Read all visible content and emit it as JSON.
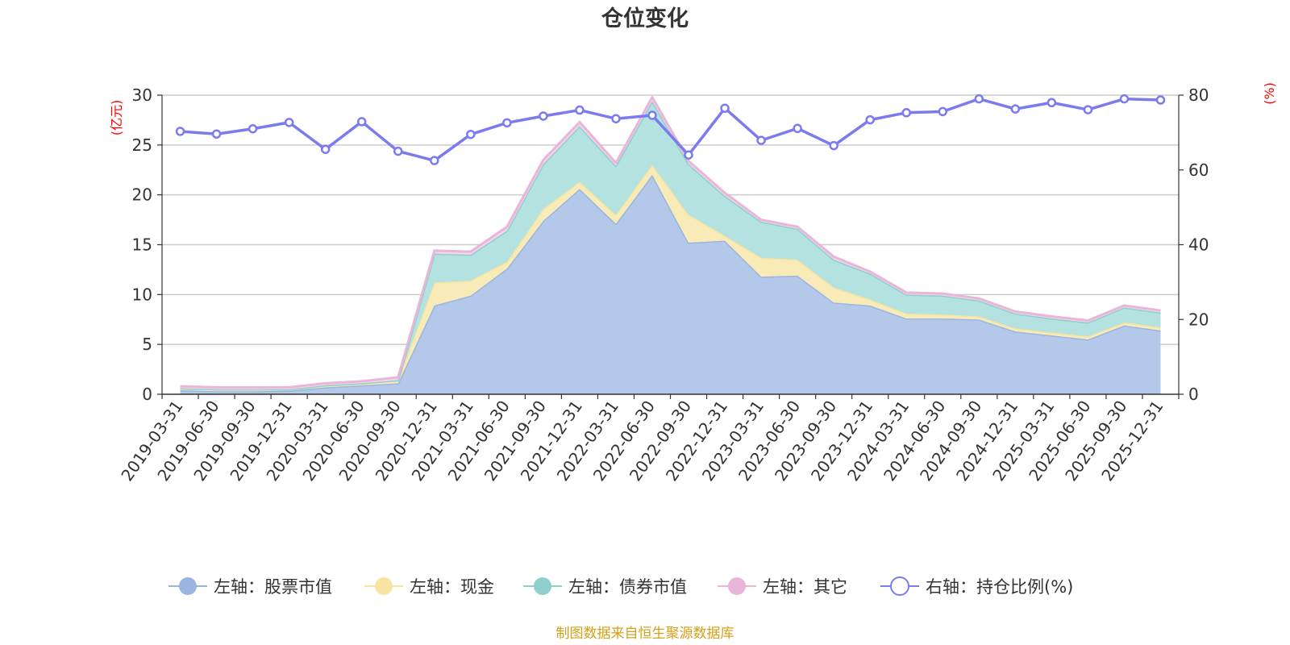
{
  "chart_data": {
    "type": "area",
    "title": "仓位变化",
    "left_axis_unit": "(亿元)",
    "right_axis_unit": "(%)",
    "left_ylim": [
      0,
      30
    ],
    "left_yticks": [
      "0",
      "5",
      "10",
      "15",
      "20",
      "25",
      "30"
    ],
    "right_ylim": [
      0,
      80
    ],
    "right_yticks": [
      "0",
      "20",
      "40",
      "60",
      "80"
    ],
    "categories": [
      "2019-03-31",
      "2019-06-30",
      "2019-09-30",
      "2019-12-31",
      "2020-03-31",
      "2020-06-30",
      "2020-09-30",
      "2020-12-31",
      "2021-03-31",
      "2021-06-30",
      "2021-09-30",
      "2021-12-31",
      "2022-03-31",
      "2022-06-30",
      "2022-09-30",
      "2022-12-31",
      "2023-03-31",
      "2023-06-30",
      "2023-09-30",
      "2023-12-31",
      "2024-03-31",
      "2024-06-30",
      "2024-09-30",
      "2024-12-31",
      "2025-03-31",
      "2025-06-30",
      "2025-09-30",
      "2025-12-31"
    ],
    "series": [
      {
        "name": "左轴：股票市值",
        "axis": "left",
        "color": "#9ab5e0",
        "fill": "#b4c9e9",
        "values": [
          0.4,
          0.3,
          0.3,
          0.35,
          0.7,
          0.9,
          1.1,
          8.9,
          9.9,
          12.6,
          17.4,
          20.6,
          17.1,
          22.0,
          15.2,
          15.4,
          11.8,
          11.9,
          9.2,
          8.9,
          7.6,
          7.6,
          7.5,
          6.3,
          5.9,
          5.5,
          6.9,
          6.4
        ]
      },
      {
        "name": "左轴：现金",
        "axis": "left",
        "color": "#f7e4a1",
        "fill": "#f8ebb8",
        "values": [
          0.2,
          0.2,
          0.2,
          0.15,
          0.2,
          0.2,
          0.3,
          2.3,
          1.5,
          0.7,
          1.2,
          0.7,
          0.9,
          1.0,
          2.8,
          0.5,
          1.9,
          1.6,
          1.5,
          0.6,
          0.5,
          0.4,
          0.3,
          0.3,
          0.3,
          0.3,
          0.3,
          0.3
        ]
      },
      {
        "name": "左轴：债券市值",
        "axis": "left",
        "color": "#8fd0cc",
        "fill": "#b3e2e0",
        "values": [
          0,
          0,
          0,
          0,
          0,
          0,
          0,
          2.9,
          2.6,
          3.1,
          4.5,
          5.6,
          4.9,
          6.4,
          5.1,
          4.0,
          3.6,
          3.1,
          2.8,
          2.6,
          1.9,
          1.9,
          1.6,
          1.5,
          1.4,
          1.4,
          1.5,
          1.5
        ]
      },
      {
        "name": "左轴：其它",
        "axis": "left",
        "color": "#e9b5d8",
        "fill": "#f4d6ea",
        "values": [
          0.2,
          0.2,
          0.2,
          0.2,
          0.2,
          0.2,
          0.3,
          0.3,
          0.3,
          0.4,
          0.4,
          0.4,
          0.3,
          0.4,
          0.3,
          0.3,
          0.2,
          0.2,
          0.3,
          0.2,
          0.2,
          0.2,
          0.2,
          0.2,
          0.2,
          0.2,
          0.2,
          0.2
        ]
      },
      {
        "name": "右轴：持仓比例(%)",
        "axis": "right",
        "color": "#7b7bef",
        "values": [
          70.3,
          69.6,
          71.0,
          72.7,
          65.5,
          72.9,
          65.0,
          62.5,
          69.5,
          72.6,
          74.4,
          76.0,
          73.7,
          74.6,
          64.0,
          76.5,
          67.9,
          71.1,
          66.5,
          73.4,
          75.3,
          75.6,
          79.0,
          76.3,
          78.0,
          76.1,
          79.0,
          78.7
        ]
      }
    ]
  },
  "legend": [
    {
      "label": "左轴：股票市值",
      "color": "#9ab5e0",
      "hollow": false
    },
    {
      "label": "左轴：现金",
      "color": "#f7e4a1",
      "hollow": false
    },
    {
      "label": "左轴：债券市值",
      "color": "#8fd0cc",
      "hollow": false
    },
    {
      "label": "左轴：其它",
      "color": "#e9b5d8",
      "hollow": false
    },
    {
      "label": "右轴：持仓比例(%)",
      "color": "#7b7bef",
      "hollow": true
    }
  ],
  "source_note": "制图数据来自恒生聚源数据库"
}
